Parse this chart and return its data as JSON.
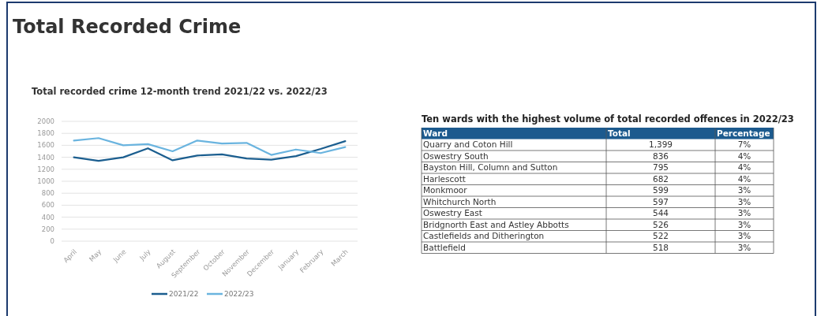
{
  "chart_data": [
    {
      "type": "line",
      "title": "Total Recorded Crime",
      "subtitle": "Total recorded crime 12-month trend 2021/22 vs. 2022/23",
      "categories": [
        "April",
        "May",
        "June",
        "July",
        "August",
        "September",
        "October",
        "November",
        "December",
        "January",
        "February",
        "March"
      ],
      "series": [
        {
          "name": "2021/22",
          "color": "#1b5e8f",
          "values": [
            1400,
            1340,
            1400,
            1550,
            1350,
            1430,
            1450,
            1380,
            1360,
            1420,
            1540,
            1670
          ]
        },
        {
          "name": "2022/23",
          "color": "#6ab4df",
          "values": [
            1680,
            1720,
            1600,
            1620,
            1500,
            1680,
            1630,
            1640,
            1440,
            1530,
            1470,
            1570
          ]
        }
      ],
      "ylim": [
        0,
        2000
      ],
      "yticks": [
        0,
        200,
        400,
        600,
        800,
        1000,
        1200,
        1400,
        1600,
        1800,
        2000
      ],
      "grid": "y",
      "legend": "bottom"
    },
    {
      "type": "other",
      "title": "Ten wards with the highest volume of total recorded offences in 2022/23",
      "xlabel": "Ward",
      "categories": [
        "Quarry and Coton Hill",
        "Oswestry South",
        "Bayston Hill, Column and Sutton",
        "Harlescott",
        "Monkmoor",
        "Whitchurch North",
        "Oswestry East",
        "Bridgnorth East and Astley Abbotts",
        "Castlefields and Ditherington",
        "Battlefield"
      ],
      "series": [
        {
          "name": "Total",
          "values": [
            1399,
            836,
            795,
            682,
            599,
            597,
            544,
            526,
            522,
            518
          ],
          "value_labels": [
            "1,399",
            "836",
            "795",
            "682",
            "599",
            "597",
            "544",
            "526",
            "522",
            "518"
          ]
        },
        {
          "name": "Percentage",
          "values": [
            7,
            4,
            4,
            4,
            3,
            3,
            3,
            3,
            3,
            3
          ],
          "value_labels": [
            "7%",
            "4%",
            "4%",
            "4%",
            "3%",
            "3%",
            "3%",
            "3%",
            "3%",
            "3%"
          ]
        }
      ],
      "data_labels": true
    }
  ]
}
